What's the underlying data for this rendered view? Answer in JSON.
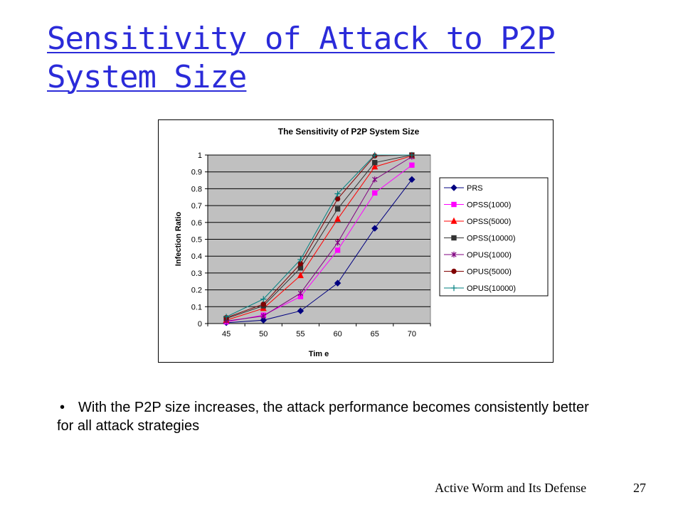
{
  "slide": {
    "title": "Sensitivity of Attack to P2P System Size",
    "bullet_symbol": "•",
    "bullet_text": "With the P2P size increases, the attack performance becomes consistently better for all attack strategies",
    "footer_left": "Active Worm and Its Defense",
    "page_number": "27"
  },
  "chart_data": {
    "type": "line",
    "title": "The Sensitivity of P2P System Size",
    "xlabel": "Tim e",
    "ylabel": "Infection Ratio",
    "categories": [
      "45",
      "50",
      "55",
      "60",
      "65",
      "70"
    ],
    "ylim": [
      0,
      1
    ],
    "yticks": [
      "0",
      "0.1",
      "0.2",
      "0.3",
      "0.4",
      "0.5",
      "0.6",
      "0.7",
      "0.8",
      "0.9",
      "1"
    ],
    "grid": "horizontal",
    "legend_position": "right",
    "series": [
      {
        "name": "PRS",
        "color": "#000080",
        "marker": "diamond",
        "values": [
          0.005,
          0.02,
          0.075,
          0.24,
          0.565,
          0.855
        ]
      },
      {
        "name": "OPSS(1000)",
        "color": "#ff00ff",
        "marker": "square",
        "values": [
          0.01,
          0.05,
          0.16,
          0.435,
          0.775,
          0.94
        ]
      },
      {
        "name": "OPSS(5000)",
        "color": "#ff0000",
        "marker": "triangle",
        "values": [
          0.02,
          0.09,
          0.285,
          0.62,
          0.93,
          0.995
        ]
      },
      {
        "name": "OPSS(10000)",
        "color": "#333333",
        "marker": "square",
        "values": [
          0.03,
          0.105,
          0.33,
          0.68,
          0.955,
          1.0
        ]
      },
      {
        "name": "OPUS(1000)",
        "color": "#800080",
        "marker": "asterisk",
        "values": [
          0.015,
          0.045,
          0.18,
          0.48,
          0.855,
          0.99
        ]
      },
      {
        "name": "OPUS(5000)",
        "color": "#800000",
        "marker": "circle",
        "values": [
          0.035,
          0.115,
          0.355,
          0.74,
          0.995,
          1.0
        ]
      },
      {
        "name": "OPUS(10000)",
        "color": "#008080",
        "marker": "plus",
        "values": [
          0.04,
          0.145,
          0.38,
          0.77,
          1.0,
          1.0
        ]
      }
    ]
  }
}
